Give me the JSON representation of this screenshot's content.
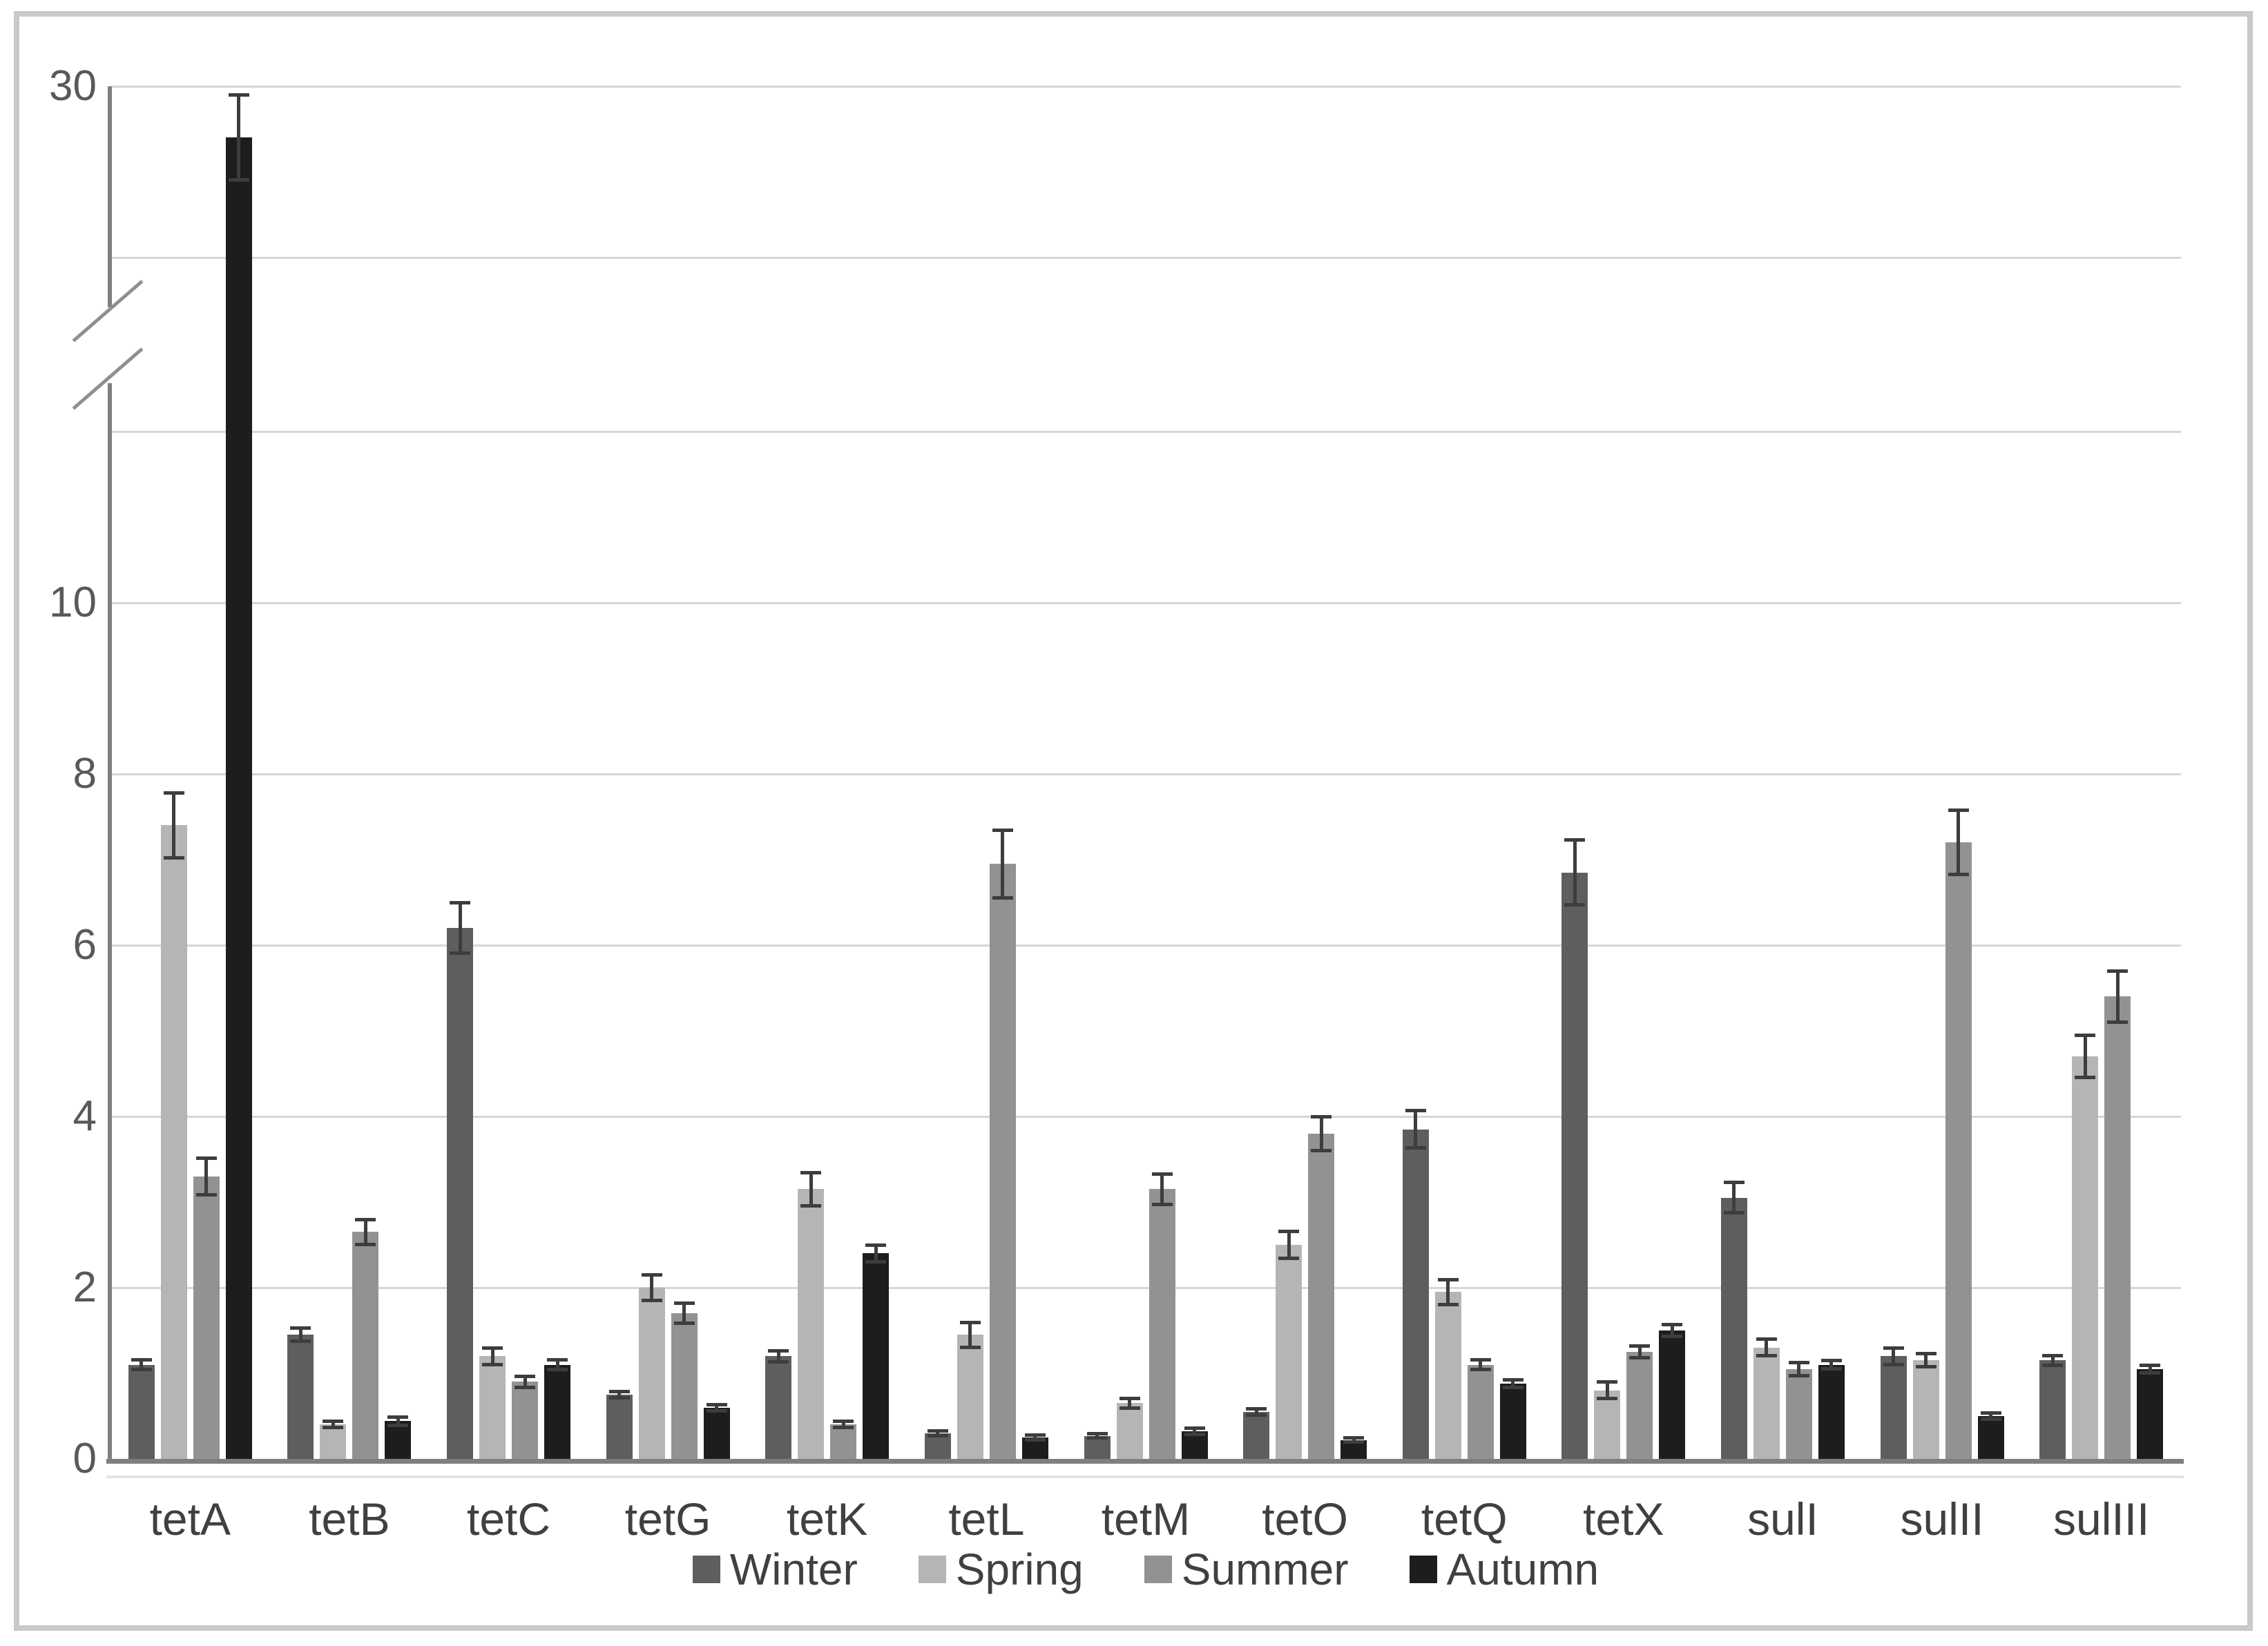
{
  "figure": {
    "background_color": "#ffffff",
    "frame_color": "#c9c9c9"
  },
  "chart_data": {
    "type": "bar",
    "title": "",
    "xlabel": "",
    "ylabel": "",
    "categories": [
      "tetA",
      "tetB",
      "tetC",
      "tetG",
      "tetK",
      "tetL",
      "tetM",
      "tetO",
      "tetQ",
      "tetX",
      "sulI",
      "sulII",
      "sulIII"
    ],
    "series": [
      {
        "name": "Winter",
        "color": "#5e5e5e",
        "values": [
          1.1,
          1.45,
          6.2,
          0.75,
          1.2,
          0.3,
          0.27,
          0.55,
          3.85,
          6.85,
          3.05,
          1.2,
          1.15
        ],
        "errors": [
          0.06,
          0.08,
          0.3,
          0.04,
          0.07,
          0.03,
          0.03,
          0.04,
          0.22,
          0.38,
          0.18,
          0.1,
          0.06
        ]
      },
      {
        "name": "Spring",
        "color": "#b5b5b5",
        "values": [
          7.4,
          0.4,
          1.2,
          2.0,
          3.15,
          1.45,
          0.65,
          2.5,
          1.95,
          0.8,
          1.3,
          1.15,
          4.7
        ],
        "errors": [
          0.38,
          0.04,
          0.1,
          0.15,
          0.2,
          0.15,
          0.06,
          0.16,
          0.15,
          0.1,
          0.1,
          0.08,
          0.25
        ]
      },
      {
        "name": "Summer",
        "color": "#929292",
        "values": [
          3.3,
          2.65,
          0.9,
          1.7,
          0.4,
          6.95,
          3.15,
          3.8,
          1.1,
          1.25,
          1.05,
          7.2,
          5.4
        ],
        "errors": [
          0.22,
          0.15,
          0.07,
          0.12,
          0.04,
          0.4,
          0.18,
          0.2,
          0.06,
          0.07,
          0.08,
          0.38,
          0.3
        ]
      },
      {
        "name": "Autumn",
        "color": "#1d1d1d",
        "values": [
          29.4,
          0.44,
          1.1,
          0.6,
          2.4,
          0.25,
          0.32,
          0.22,
          0.88,
          1.5,
          1.1,
          0.5,
          1.05
        ],
        "errors": [
          0.5,
          0.05,
          0.06,
          0.04,
          0.1,
          0.03,
          0.04,
          0.03,
          0.05,
          0.07,
          0.05,
          0.04,
          0.05
        ]
      }
    ],
    "error_bar_color": "#3d3d3d",
    "yaxis": {
      "tick_labels": [
        {
          "value": 0,
          "label": "0"
        },
        {
          "value": 2,
          "label": "2"
        },
        {
          "value": 4,
          "label": "4"
        },
        {
          "value": 6,
          "label": "6"
        },
        {
          "value": 8,
          "label": "8"
        },
        {
          "value": 10,
          "label": "10"
        },
        {
          "value": 30,
          "label": "30"
        }
      ],
      "gridline_values": [
        2,
        4,
        6,
        8,
        10,
        12,
        28,
        30
      ],
      "axis_break_between": [
        12,
        28
      ],
      "lower_segment_range": [
        0,
        12
      ],
      "upper_segment_range": [
        28,
        30
      ],
      "grid": true
    },
    "legend": {
      "position": "bottom",
      "entries": [
        "Winter",
        "Spring",
        "Summer",
        "Autumn"
      ]
    }
  }
}
